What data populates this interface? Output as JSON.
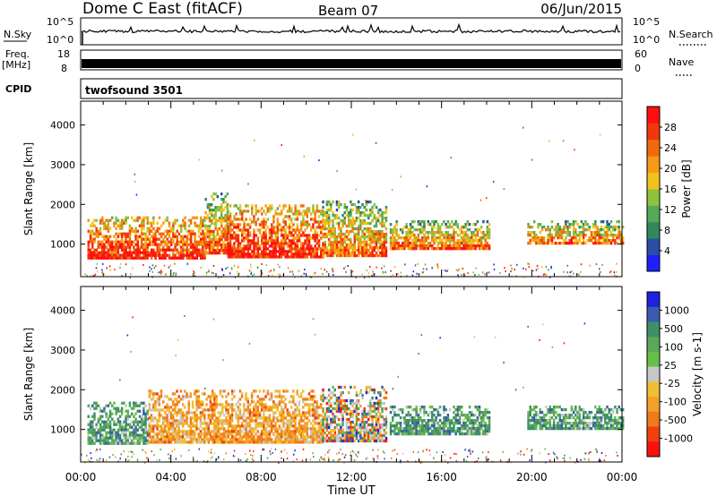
{
  "header": {
    "title": "Dome C East (fitACF)",
    "beam": "Beam 07",
    "date": "06/Jun/2015"
  },
  "top_panels": {
    "nsky_label": "N.Sky",
    "nsky_ticks": [
      "10^5",
      "10^0"
    ],
    "nsearch_label": "N.Search",
    "nsearch_ticks": [
      "10^5",
      "10^0"
    ],
    "freq_label": "Freq.",
    "freq_unit": "[MHz]",
    "freq_ticks": [
      "18",
      "8"
    ],
    "nave_label": "Nave",
    "nave_ticks": [
      "60",
      "0"
    ],
    "cpid_label": "CPID",
    "cpid_value": "twofsound 3501"
  },
  "chart_data": [
    {
      "type": "heatmap",
      "name": "power",
      "ylabel": "Slant Range [km]",
      "ylim": [
        180,
        4600
      ],
      "yticks": [
        1000,
        2000,
        3000,
        4000
      ],
      "xlabel": "Time UT",
      "xlim": [
        0,
        24
      ],
      "xticks": [
        "00:00",
        "04:00",
        "08:00",
        "12:00",
        "16:00",
        "20:00",
        "00:00"
      ],
      "colorbar": {
        "label": "Power [dB]",
        "ticks": [
          "4",
          "8",
          "12",
          "16",
          "20",
          "24",
          "28"
        ],
        "colors": [
          "#1f1fff",
          "#2b4ea6",
          "#2e8a5c",
          "#58a85a",
          "#8cc43c",
          "#f4c21c",
          "#f59a16",
          "#f06a0c",
          "#f2380a",
          "#ff1010"
        ]
      },
      "echo_regions": [
        {
          "t0": 0.3,
          "t1": 5.5,
          "r0": 650,
          "r1": 1700,
          "level": "high"
        },
        {
          "t0": 5.5,
          "t1": 6.5,
          "r0": 800,
          "r1": 2300,
          "level": "mid"
        },
        {
          "t0": 6.5,
          "t1": 10.7,
          "r0": 650,
          "r1": 2000,
          "level": "high"
        },
        {
          "t0": 10.7,
          "t1": 13.5,
          "r0": 700,
          "r1": 2100,
          "level": "mid"
        },
        {
          "t0": 13.7,
          "t1": 18.1,
          "r0": 900,
          "r1": 1600,
          "level": "mid"
        },
        {
          "t0": 19.8,
          "t1": 24.0,
          "r0": 1000,
          "r1": 1600,
          "level": "mid"
        }
      ]
    },
    {
      "type": "heatmap",
      "name": "velocity",
      "ylabel": "Slant Range [km]",
      "ylim": [
        180,
        4600
      ],
      "yticks": [
        1000,
        2000,
        3000,
        4000
      ],
      "xlabel": "Time UT",
      "xlim": [
        0,
        24
      ],
      "xticks": [
        "00:00",
        "04:00",
        "08:00",
        "12:00",
        "16:00",
        "20:00",
        "00:00"
      ],
      "colorbar": {
        "label": "Velocity [m s-1]",
        "ticks": [
          "1000",
          "500",
          "100",
          "25",
          "-25",
          "-100",
          "-500",
          "-1000"
        ],
        "colors": [
          "#2020e0",
          "#3b5bb0",
          "#3f8f6a",
          "#5aa858",
          "#66c048",
          "#c8c8c8",
          "#f0c030",
          "#f5a02a",
          "#f07a1c",
          "#f04010",
          "#ff1010"
        ]
      },
      "echo_regions": [
        {
          "t0": 0.3,
          "t1": 3.0,
          "r0": 650,
          "r1": 1700,
          "level": "positive"
        },
        {
          "t0": 3.0,
          "t1": 10.7,
          "r0": 650,
          "r1": 2000,
          "level": "negative"
        },
        {
          "t0": 10.7,
          "t1": 13.5,
          "r0": 700,
          "r1": 2100,
          "level": "mixed"
        },
        {
          "t0": 13.7,
          "t1": 18.1,
          "r0": 900,
          "r1": 1600,
          "level": "positive"
        },
        {
          "t0": 19.8,
          "t1": 24.0,
          "r0": 1000,
          "r1": 1600,
          "level": "positive"
        }
      ]
    }
  ]
}
